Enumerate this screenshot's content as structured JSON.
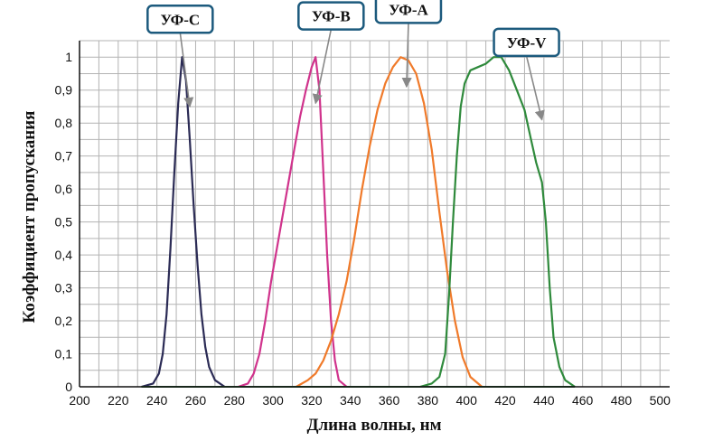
{
  "chart_data": {
    "type": "line",
    "title": "",
    "xlabel": "Длина волны, нм",
    "ylabel": "Коэффициент пропускания",
    "xlim": [
      200,
      505
    ],
    "ylim": [
      0,
      1.05
    ],
    "x_ticks": [
      200,
      220,
      240,
      260,
      280,
      300,
      320,
      340,
      360,
      380,
      400,
      420,
      440,
      460,
      480,
      500
    ],
    "y_ticks": [
      0,
      0.1,
      0.2,
      0.3,
      0.4,
      0.5,
      0.6,
      0.7,
      0.8,
      0.9,
      1
    ],
    "y_tick_labels": [
      "0",
      "0,1",
      "0,2",
      "0,3",
      "0,4",
      "0,5",
      "0,6",
      "0,7",
      "0,8",
      "0,9",
      "1"
    ],
    "grid": true,
    "series": [
      {
        "name": "УФ-С",
        "color": "#2b2b55",
        "points": [
          [
            232,
            0
          ],
          [
            238,
            0.01
          ],
          [
            241,
            0.04
          ],
          [
            243,
            0.1
          ],
          [
            245,
            0.22
          ],
          [
            247,
            0.42
          ],
          [
            249,
            0.65
          ],
          [
            251,
            0.86
          ],
          [
            253,
            1.0
          ],
          [
            255,
            0.93
          ],
          [
            257,
            0.75
          ],
          [
            259,
            0.55
          ],
          [
            261,
            0.37
          ],
          [
            263,
            0.22
          ],
          [
            265,
            0.12
          ],
          [
            267,
            0.06
          ],
          [
            270,
            0.02
          ],
          [
            275,
            0
          ]
        ]
      },
      {
        "name": "УФ-В",
        "color": "#d0338c",
        "points": [
          [
            282,
            0
          ],
          [
            287,
            0.01
          ],
          [
            290,
            0.04
          ],
          [
            293,
            0.1
          ],
          [
            296,
            0.2
          ],
          [
            299,
            0.32
          ],
          [
            302,
            0.42
          ],
          [
            305,
            0.52
          ],
          [
            308,
            0.62
          ],
          [
            311,
            0.72
          ],
          [
            314,
            0.82
          ],
          [
            317,
            0.9
          ],
          [
            320,
            0.97
          ],
          [
            322,
            1.0
          ],
          [
            324,
            0.9
          ],
          [
            326,
            0.65
          ],
          [
            328,
            0.4
          ],
          [
            330,
            0.2
          ],
          [
            332,
            0.08
          ],
          [
            334,
            0.02
          ],
          [
            338,
            0
          ]
        ]
      },
      {
        "name": "УФ-А",
        "color": "#f07a2a",
        "points": [
          [
            312,
            0
          ],
          [
            318,
            0.02
          ],
          [
            322,
            0.04
          ],
          [
            326,
            0.08
          ],
          [
            330,
            0.14
          ],
          [
            334,
            0.22
          ],
          [
            338,
            0.32
          ],
          [
            342,
            0.45
          ],
          [
            346,
            0.6
          ],
          [
            350,
            0.73
          ],
          [
            354,
            0.84
          ],
          [
            358,
            0.92
          ],
          [
            362,
            0.97
          ],
          [
            366,
            1.0
          ],
          [
            370,
            0.99
          ],
          [
            374,
            0.95
          ],
          [
            378,
            0.86
          ],
          [
            382,
            0.72
          ],
          [
            386,
            0.53
          ],
          [
            390,
            0.35
          ],
          [
            394,
            0.2
          ],
          [
            398,
            0.09
          ],
          [
            402,
            0.03
          ],
          [
            408,
            0
          ]
        ]
      },
      {
        "name": "УФ-V",
        "color": "#2f8a3c",
        "points": [
          [
            376,
            0
          ],
          [
            382,
            0.01
          ],
          [
            386,
            0.03
          ],
          [
            389,
            0.1
          ],
          [
            391,
            0.28
          ],
          [
            393,
            0.5
          ],
          [
            395,
            0.7
          ],
          [
            397,
            0.85
          ],
          [
            399,
            0.92
          ],
          [
            402,
            0.96
          ],
          [
            406,
            0.97
          ],
          [
            410,
            0.98
          ],
          [
            414,
            1.0
          ],
          [
            418,
            1.0
          ],
          [
            422,
            0.96
          ],
          [
            426,
            0.9
          ],
          [
            430,
            0.84
          ],
          [
            433,
            0.76
          ],
          [
            436,
            0.68
          ],
          [
            439,
            0.62
          ],
          [
            441,
            0.5
          ],
          [
            443,
            0.3
          ],
          [
            445,
            0.15
          ],
          [
            448,
            0.06
          ],
          [
            451,
            0.02
          ],
          [
            456,
            0
          ]
        ]
      }
    ],
    "annotations": [
      {
        "label": "УФ-С",
        "series": "УФ-С"
      },
      {
        "label": "УФ-В",
        "series": "УФ-В"
      },
      {
        "label": "УФ-А",
        "series": "УФ-А"
      },
      {
        "label": "УФ-V",
        "series": "УФ-V"
      }
    ],
    "colors": {
      "grid": "#b3b3b3",
      "axis": "#111111",
      "callout_border": "#1c5a7d",
      "arrow": "#888888"
    }
  }
}
